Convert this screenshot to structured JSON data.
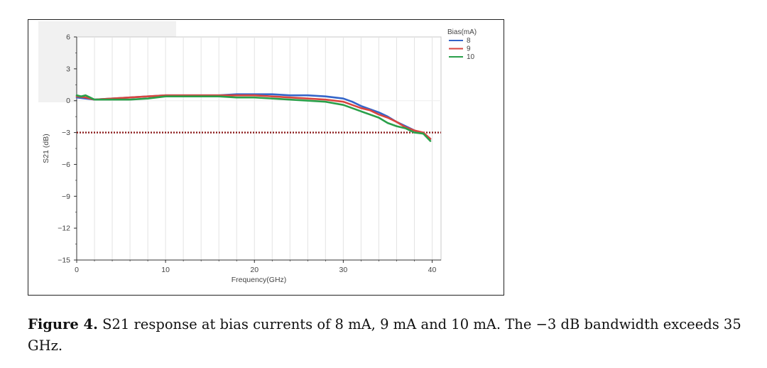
{
  "chart_data": {
    "type": "line",
    "xlabel": "Frequency(GHz)",
    "ylabel": "S21 (dB)",
    "xlim": [
      0,
      41
    ],
    "ylim": [
      -15,
      6
    ],
    "x_ticks": [
      0,
      10,
      20,
      30,
      40
    ],
    "y_ticks": [
      6,
      3,
      0,
      -3,
      -6,
      -9,
      -12,
      -15
    ],
    "grid": "vertical",
    "legend": {
      "title": "Bias(mA)",
      "position": "right"
    },
    "reference_line": {
      "y": -3,
      "style": "dotted",
      "color": "#8b1a1a"
    },
    "series": [
      {
        "name": "8",
        "color": "#3465c9",
        "x": [
          0,
          1,
          2,
          4,
          6,
          8,
          10,
          12,
          14,
          16,
          18,
          20,
          22,
          24,
          26,
          28,
          30,
          31,
          32,
          33,
          34,
          35,
          36,
          37,
          38,
          39,
          39.8
        ],
        "y": [
          0.3,
          0.2,
          0.1,
          0.2,
          0.3,
          0.4,
          0.5,
          0.5,
          0.5,
          0.5,
          0.6,
          0.6,
          0.6,
          0.5,
          0.5,
          0.4,
          0.2,
          -0.1,
          -0.5,
          -0.8,
          -1.1,
          -1.5,
          -2.0,
          -2.4,
          -2.8,
          -3.1,
          -3.6
        ]
      },
      {
        "name": "9",
        "color": "#d9453f",
        "x": [
          0,
          1,
          2,
          4,
          6,
          8,
          10,
          12,
          14,
          16,
          18,
          20,
          22,
          24,
          26,
          28,
          30,
          31,
          32,
          33,
          34,
          35,
          36,
          37,
          38,
          39,
          39.8
        ],
        "y": [
          0.4,
          0.3,
          0.1,
          0.2,
          0.3,
          0.4,
          0.5,
          0.5,
          0.5,
          0.5,
          0.5,
          0.5,
          0.4,
          0.3,
          0.2,
          0.1,
          -0.1,
          -0.4,
          -0.7,
          -0.9,
          -1.3,
          -1.6,
          -2.0,
          -2.5,
          -2.8,
          -3.0,
          -3.6
        ]
      },
      {
        "name": "10",
        "color": "#2aa04a",
        "x": [
          0,
          0.5,
          1,
          1.5,
          2,
          4,
          6,
          8,
          10,
          12,
          14,
          16,
          18,
          20,
          22,
          24,
          26,
          28,
          30,
          31,
          32,
          33,
          34,
          35,
          36,
          37,
          38,
          39,
          39.8
        ],
        "y": [
          0.5,
          0.4,
          0.5,
          0.3,
          0.1,
          0.1,
          0.1,
          0.2,
          0.4,
          0.4,
          0.4,
          0.4,
          0.3,
          0.3,
          0.2,
          0.1,
          0.0,
          -0.1,
          -0.4,
          -0.7,
          -1.0,
          -1.3,
          -1.6,
          -2.1,
          -2.4,
          -2.6,
          -3.0,
          -3.1,
          -3.8
        ]
      }
    ]
  },
  "caption": {
    "label": "Figure 4.",
    "text": "S21 response at bias currents of 8 mA, 9 mA and 10 mA. The −3 dB bandwidth exceeds 35 GHz."
  }
}
